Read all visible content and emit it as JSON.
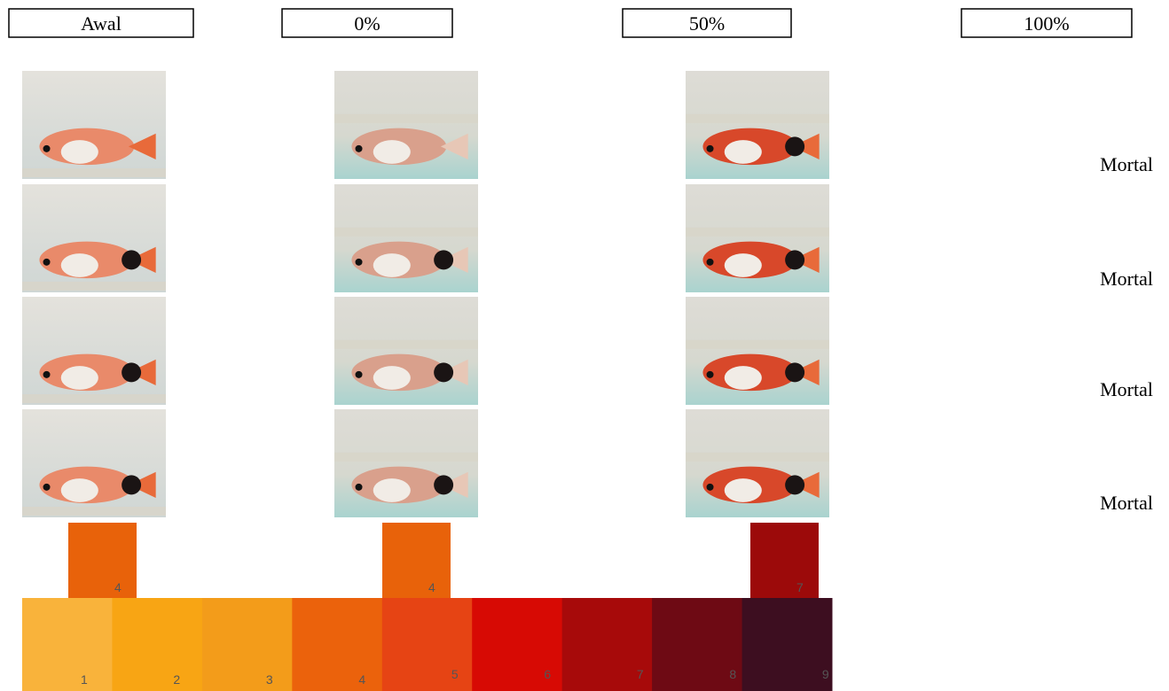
{
  "headers": [
    "Awal",
    "0%",
    "50%",
    "100%"
  ],
  "mortal_labels": [
    "Mortal",
    "Mortal",
    "Mortal",
    "Mortal"
  ],
  "swatches": [
    {
      "label": "4",
      "color": "#e8620a"
    },
    {
      "label": "4",
      "color": "#e8620a"
    },
    {
      "label": "7",
      "color": "#9c0a0a"
    }
  ],
  "color_scale": [
    {
      "label": "1",
      "color": "#f9b33b"
    },
    {
      "label": "2",
      "color": "#f8a514"
    },
    {
      "label": "3",
      "color": "#f39c1a"
    },
    {
      "label": "4",
      "color": "#eb620c"
    },
    {
      "label": "5",
      "color": "#e64414"
    },
    {
      "label": "6",
      "color": "#d70a04"
    },
    {
      "label": "7",
      "color": "#a70a0a"
    },
    {
      "label": "8",
      "color": "#6e0a14"
    },
    {
      "label": "9",
      "color": "#3d0e20"
    }
  ]
}
